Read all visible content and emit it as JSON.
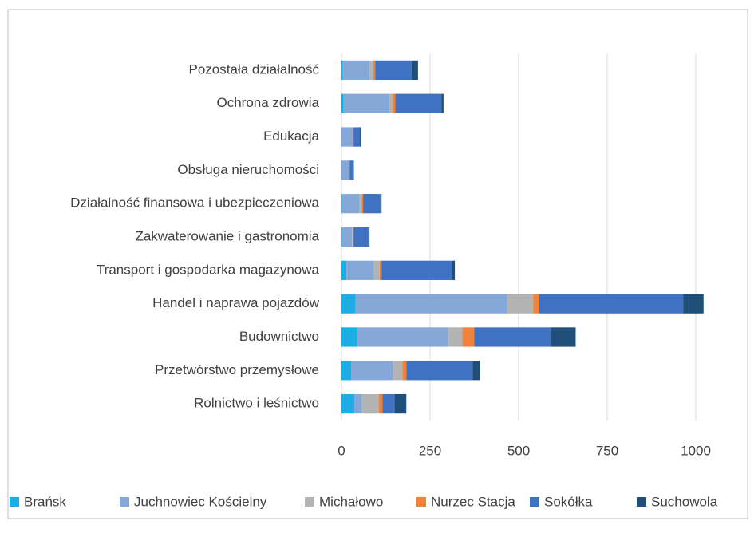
{
  "chart_data": {
    "type": "bar",
    "orientation": "horizontal",
    "stacked": true,
    "categories": [
      "Pozostała działalność",
      "Ochrona zdrowia",
      "Edukacja",
      "Obsługa nieruchomości",
      "Działalność finansowa i ubezpieczeniowa",
      "Zakwaterowanie i gastronomia",
      "Transport i gospodarka magazynowa",
      "Handel i naprawa pojazdów",
      "Budownictwo",
      "Przetwórstwo przemysłowe",
      "Rolnictwo i leśnictwo"
    ],
    "series": [
      {
        "name": "Brańsk",
        "color": "#1cade4",
        "values": [
          4,
          6,
          0,
          0,
          1,
          1,
          14,
          40,
          43,
          27,
          36
        ]
      },
      {
        "name": "Juchnowiec Kościelny",
        "color": "#86a8d8",
        "values": [
          75,
          128,
          32,
          22,
          50,
          29,
          77,
          428,
          258,
          118,
          22
        ]
      },
      {
        "name": "Michałowo",
        "color": "#b3b3b3",
        "values": [
          10,
          10,
          2,
          1,
          6,
          3,
          17,
          73,
          40,
          27,
          47
        ]
      },
      {
        "name": "Nurzec Stacja",
        "color": "#f0823a",
        "values": [
          6,
          8,
          0,
          0,
          4,
          1,
          5,
          17,
          34,
          11,
          11
        ]
      },
      {
        "name": "Sokółka",
        "color": "#3f72c0",
        "values": [
          103,
          130,
          18,
          11,
          49,
          42,
          200,
          407,
          216,
          187,
          34
        ]
      },
      {
        "name": "Suchowola",
        "color": "#1f4e79",
        "values": [
          18,
          6,
          3,
          1,
          3,
          3,
          7,
          57,
          70,
          20,
          33
        ]
      }
    ],
    "xlim": [
      0,
      1100
    ],
    "xticks": [
      0,
      250,
      500,
      750,
      1000
    ],
    "grid": true,
    "legend": "bottom"
  }
}
